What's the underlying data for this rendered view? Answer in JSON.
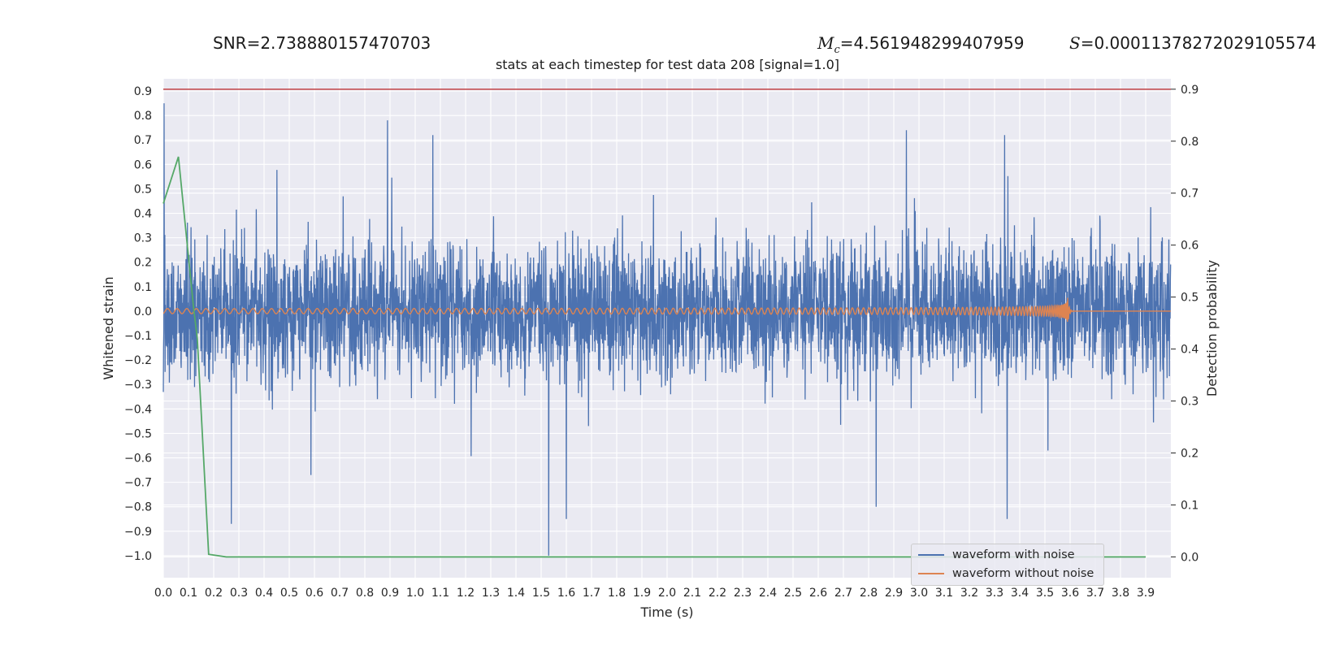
{
  "header": {
    "snr_label": "SNR",
    "snr_value": "=2.738880157470703",
    "mc_symbol": "M",
    "mc_sub": "c",
    "mc_value": "=4.561948299407959",
    "s_symbol": "S",
    "s_value": "=0.00011378272029105574"
  },
  "colors": {
    "background": "#eaeaf2",
    "noisy": "#4c72b0",
    "clean": "#dd8452",
    "probability": "#55a868",
    "threshold": "#c44e52"
  },
  "chart_data": {
    "type": "line",
    "title": "stats at each timestep for test data 208 [signal=1.0]",
    "xlabel": "Time (s)",
    "ylabel": "Whitened strain",
    "ylabel_right": "Detection probability",
    "xlim": [
      0.0,
      4.0
    ],
    "ylim": [
      -1.09,
      0.95
    ],
    "ylim_right": [
      -0.04,
      0.92
    ],
    "x_ticks": [
      "0.0",
      "0.1",
      "0.2",
      "0.3",
      "0.4",
      "0.5",
      "0.6",
      "0.7",
      "0.8",
      "0.9",
      "1.0",
      "1.1",
      "1.2",
      "1.3",
      "1.4",
      "1.5",
      "1.6",
      "1.7",
      "1.8",
      "1.9",
      "2.0",
      "2.1",
      "2.2",
      "2.3",
      "2.4",
      "2.5",
      "2.6",
      "2.7",
      "2.8",
      "2.9",
      "3.0",
      "3.1",
      "3.2",
      "3.3",
      "3.4",
      "3.5",
      "3.6",
      "3.7",
      "3.8",
      "3.9"
    ],
    "y_ticks": [
      "0.9",
      "0.8",
      "0.7",
      "0.6",
      "0.5",
      "0.4",
      "0.3",
      "0.2",
      "0.1",
      "0.0",
      "−0.1",
      "−0.2",
      "−0.3",
      "−0.4",
      "−0.5",
      "−0.6",
      "−0.7",
      "−0.8",
      "−0.9",
      "−1.0"
    ],
    "y_ticks_right": [
      "0.9",
      "0.8",
      "0.7",
      "0.6",
      "0.5",
      "0.4",
      "0.3",
      "0.2",
      "0.1",
      "0.0"
    ],
    "grid": true,
    "legend_position": "lower-right",
    "series": [
      {
        "name": "waveform with noise",
        "axis": "left",
        "noise_like": true,
        "typical_amplitude": 0.3,
        "peaks": [
          [
            0.003,
            0.85
          ],
          [
            0.89,
            0.78
          ],
          [
            1.07,
            0.72
          ],
          [
            1.53,
            -1.0
          ],
          [
            2.95,
            0.74
          ],
          [
            3.34,
            0.72
          ],
          [
            0.27,
            -0.87
          ],
          [
            2.83,
            -0.8
          ],
          [
            3.35,
            -0.85
          ],
          [
            1.6,
            -0.85
          ]
        ]
      },
      {
        "name": "waveform without noise",
        "axis": "left",
        "chirp": true,
        "merger_time": 3.59,
        "peak_amplitude": 0.06
      },
      {
        "axis": "right",
        "x": [
          0.0,
          0.06,
          0.12,
          0.135,
          0.18,
          0.25,
          3.9
        ],
        "y": [
          0.68,
          0.77,
          0.48,
          0.42,
          0.005,
          0.0,
          0.0
        ]
      },
      {
        "axis": "right",
        "type": "hline",
        "y": 0.9
      }
    ]
  }
}
